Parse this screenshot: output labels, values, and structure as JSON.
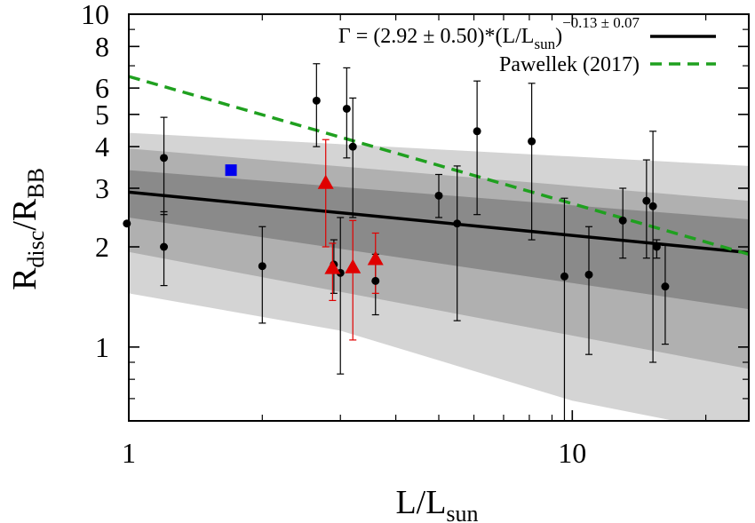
{
  "chart_data": {
    "type": "scatter",
    "x_axis": {
      "scale": "log",
      "range": [
        1,
        25
      ],
      "ticks": [
        {
          "value": 1,
          "label": "1"
        },
        {
          "value": 10,
          "label": "10"
        }
      ],
      "label_main": "L/L",
      "label_sub": "sun"
    },
    "y_axis": {
      "scale": "log",
      "range": [
        0.6,
        10
      ],
      "ticks": [
        {
          "value": 1,
          "label": "1"
        },
        {
          "value": 2,
          "label": "2"
        },
        {
          "value": 3,
          "label": "3"
        },
        {
          "value": 4,
          "label": "4"
        },
        {
          "value": 5,
          "label": "5"
        },
        {
          "value": 6,
          "label": "6"
        },
        {
          "value": 8,
          "label": "8"
        },
        {
          "value": 10,
          "label": "10"
        }
      ],
      "label_main_1": "R",
      "label_sub_1": "disc",
      "label_mid": "/R",
      "label_sub_2": "BB"
    },
    "grid": false,
    "legend": {
      "placement": "top-right",
      "fit_label_main": "Γ = (2.92 ± 0.50)*(L/L",
      "fit_label_sub": "sun",
      "fit_label_close": ")",
      "fit_label_sup": "−0.13 ± 0.07",
      "pawellek_label": "Pawellek (2017)"
    },
    "fit": {
      "A": 2.92,
      "A_err": 0.5,
      "B": -0.13,
      "B_err": 0.07,
      "color": "#000000"
    },
    "pawellek": {
      "points": [
        [
          1,
          6.5
        ],
        [
          25,
          1.9
        ]
      ],
      "color": "#1fa01f"
    },
    "bands": {
      "outer": {
        "color": "#d4d4d4",
        "upper": [
          [
            1,
            4.4
          ],
          [
            25,
            3.5
          ]
        ],
        "lower": [
          [
            1,
            1.45
          ],
          [
            3,
            1.12
          ],
          [
            10,
            0.69
          ],
          [
            17,
            0.6
          ]
        ]
      },
      "middle": {
        "color": "#b0b0b0",
        "upper": [
          [
            1,
            3.95
          ],
          [
            25,
            2.75
          ]
        ],
        "lower": [
          [
            1,
            1.93
          ],
          [
            25,
            0.86
          ]
        ]
      },
      "inner": {
        "color": "#8a8a8a",
        "upper": [
          [
            1,
            3.4
          ],
          [
            25,
            2.42
          ]
        ],
        "lower": [
          [
            1,
            2.45
          ],
          [
            25,
            1.3
          ]
        ]
      }
    },
    "series": [
      {
        "marker": "circle",
        "color": "#000000",
        "points": [
          {
            "x": 0.99,
            "y": 2.35,
            "lo": 2.35,
            "hi": 2.35
          },
          {
            "x": 1.2,
            "y": 3.7,
            "lo": 2.5,
            "hi": 4.9
          },
          {
            "x": 1.2,
            "y": 2.0,
            "lo": 1.53,
            "hi": 2.55
          },
          {
            "x": 2.0,
            "y": 1.75,
            "lo": 1.18,
            "hi": 2.3
          },
          {
            "x": 2.65,
            "y": 5.5,
            "lo": 4.0,
            "hi": 7.1
          },
          {
            "x": 2.9,
            "y": 1.77,
            "lo": 1.45,
            "hi": 2.1
          },
          {
            "x": 3.0,
            "y": 1.67,
            "lo": 0.83,
            "hi": 2.45
          },
          {
            "x": 3.1,
            "y": 5.2,
            "lo": 3.7,
            "hi": 6.9
          },
          {
            "x": 3.2,
            "y": 4.0,
            "lo": 2.45,
            "hi": 5.6
          },
          {
            "x": 3.6,
            "y": 1.58,
            "lo": 1.25,
            "hi": 1.9
          },
          {
            "x": 5.0,
            "y": 2.85,
            "lo": 2.45,
            "hi": 3.3
          },
          {
            "x": 5.5,
            "y": 2.35,
            "lo": 1.2,
            "hi": 3.5
          },
          {
            "x": 6.1,
            "y": 4.45,
            "lo": 2.5,
            "hi": 6.3
          },
          {
            "x": 8.1,
            "y": 4.15,
            "lo": 2.1,
            "hi": 6.2
          },
          {
            "x": 9.6,
            "y": 1.63,
            "lo": 0.5,
            "hi": 2.8
          },
          {
            "x": 10.9,
            "y": 1.65,
            "lo": 0.95,
            "hi": 2.3
          },
          {
            "x": 13.0,
            "y": 2.4,
            "lo": 1.85,
            "hi": 3.0
          },
          {
            "x": 14.7,
            "y": 2.75,
            "lo": 1.85,
            "hi": 3.65
          },
          {
            "x": 15.2,
            "y": 2.65,
            "lo": 0.9,
            "hi": 4.45
          },
          {
            "x": 15.5,
            "y": 2.0,
            "lo": 1.85,
            "hi": 2.1
          },
          {
            "x": 16.2,
            "y": 1.52,
            "lo": 1.02,
            "hi": 2.02
          }
        ]
      },
      {
        "marker": "triangle",
        "color": "#e00000",
        "points": [
          {
            "x": 2.78,
            "y": 3.1,
            "lo": 2.0,
            "hi": 4.2
          },
          {
            "x": 2.88,
            "y": 1.72,
            "lo": 1.38,
            "hi": 2.05
          },
          {
            "x": 3.2,
            "y": 1.73,
            "lo": 1.05,
            "hi": 2.4
          },
          {
            "x": 3.6,
            "y": 1.83,
            "lo": 1.45,
            "hi": 2.2
          }
        ]
      },
      {
        "marker": "square",
        "color": "#0000ee",
        "points": [
          {
            "x": 1.7,
            "y": 3.4
          }
        ]
      }
    ]
  }
}
